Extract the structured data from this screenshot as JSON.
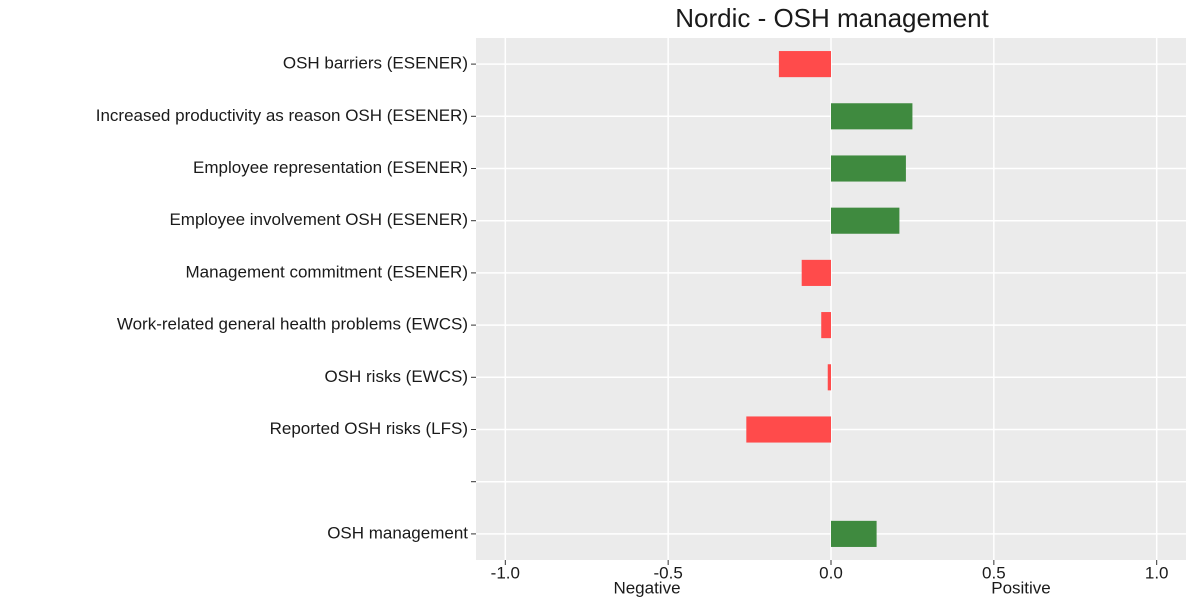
{
  "chart_data": {
    "type": "bar",
    "orientation": "horizontal",
    "title": "Nordic - OSH management",
    "categories": [
      "OSH barriers (ESENER)",
      "Increased productivity as reason OSH (ESENER)",
      "Employee representation (ESENER)",
      "Employee involvement OSH (ESENER)",
      "Management commitment (ESENER)",
      "Work-related general health problems (EWCS)",
      "OSH risks (EWCS)",
      "Reported OSH risks (LFS)",
      null,
      "OSH management"
    ],
    "values": [
      -0.16,
      0.25,
      0.23,
      0.21,
      -0.09,
      -0.03,
      -0.01,
      -0.26,
      null,
      0.14
    ],
    "positive_color": "#3f8a3f",
    "negative_color": "#ff4b4b",
    "xlim": [
      -1.09,
      1.09
    ],
    "xticks": [
      {
        "value": -1,
        "label": "-1.0"
      },
      -0.5,
      {
        "value": 0,
        "label": "0.0"
      },
      0.5,
      {
        "value": 1,
        "label": "1.0"
      }
    ],
    "annotations": [
      "Negative",
      "Positive"
    ],
    "grid": true
  }
}
